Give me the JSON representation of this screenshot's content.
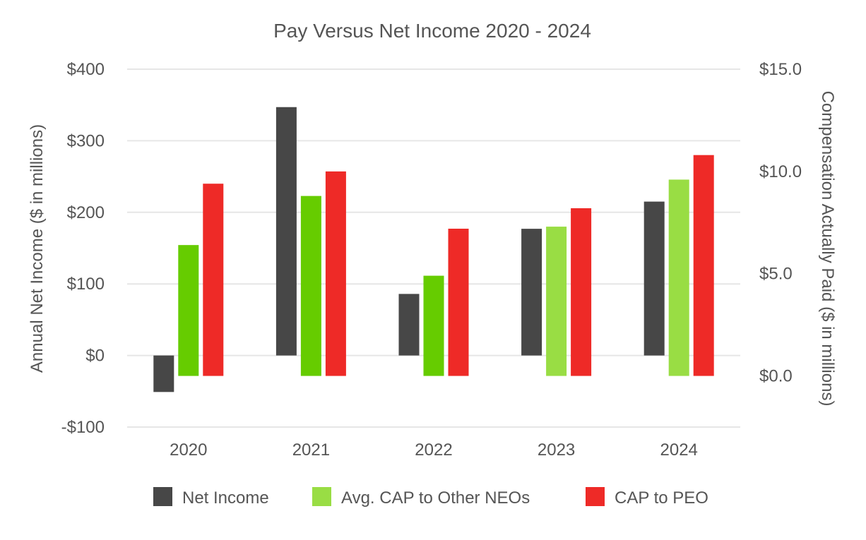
{
  "chart_data": {
    "type": "bar",
    "title": "Pay Versus Net Income 2020 - 2024",
    "categories": [
      "2020",
      "2021",
      "2022",
      "2023",
      "2024"
    ],
    "left_axis": {
      "label": "Annual Net Income ($ in millions)",
      "range": [
        -100,
        400
      ],
      "ticks": [
        {
          "value": 400,
          "label": "$400"
        },
        {
          "value": 300,
          "label": "$300"
        },
        {
          "value": 200,
          "label": "$200"
        },
        {
          "value": 100,
          "label": "$100"
        },
        {
          "value": 0,
          "label": "$0"
        },
        {
          "value": -100,
          "label": "-$100"
        }
      ]
    },
    "right_axis": {
      "label": "Compensation Actually Paid ($ in millions)",
      "range": [
        -2.5,
        15.0
      ],
      "ticks": [
        {
          "value": 15.0,
          "label": "$15.0"
        },
        {
          "value": 10.0,
          "label": "$10.0"
        },
        {
          "value": 5.0,
          "label": "$5.0"
        },
        {
          "value": 0.0,
          "label": "$0.0"
        }
      ]
    },
    "grid": true,
    "legend_position": "bottom",
    "series": [
      {
        "name": "Net Income",
        "axis": "left",
        "legend_color": "#474747",
        "colors": [
          "#474747",
          "#474747",
          "#474747",
          "#474747",
          "#474747"
        ],
        "values": [
          -51,
          347,
          86,
          177,
          215
        ]
      },
      {
        "name": "Avg. CAP to Other NEOs",
        "axis": "right",
        "legend_color": "#99dd44",
        "colors": [
          "#66cc00",
          "#66cc00",
          "#66cc00",
          "#99dd44",
          "#99dd44"
        ],
        "values": [
          6.4,
          8.8,
          4.9,
          7.3,
          9.6
        ]
      },
      {
        "name": "CAP to PEO",
        "axis": "right",
        "legend_color": "#ee2a27",
        "colors": [
          "#ee2a27",
          "#ee2a27",
          "#ee2a27",
          "#ee2a27",
          "#ee2a27"
        ],
        "values": [
          9.4,
          10.0,
          7.2,
          8.2,
          10.8
        ]
      }
    ]
  }
}
